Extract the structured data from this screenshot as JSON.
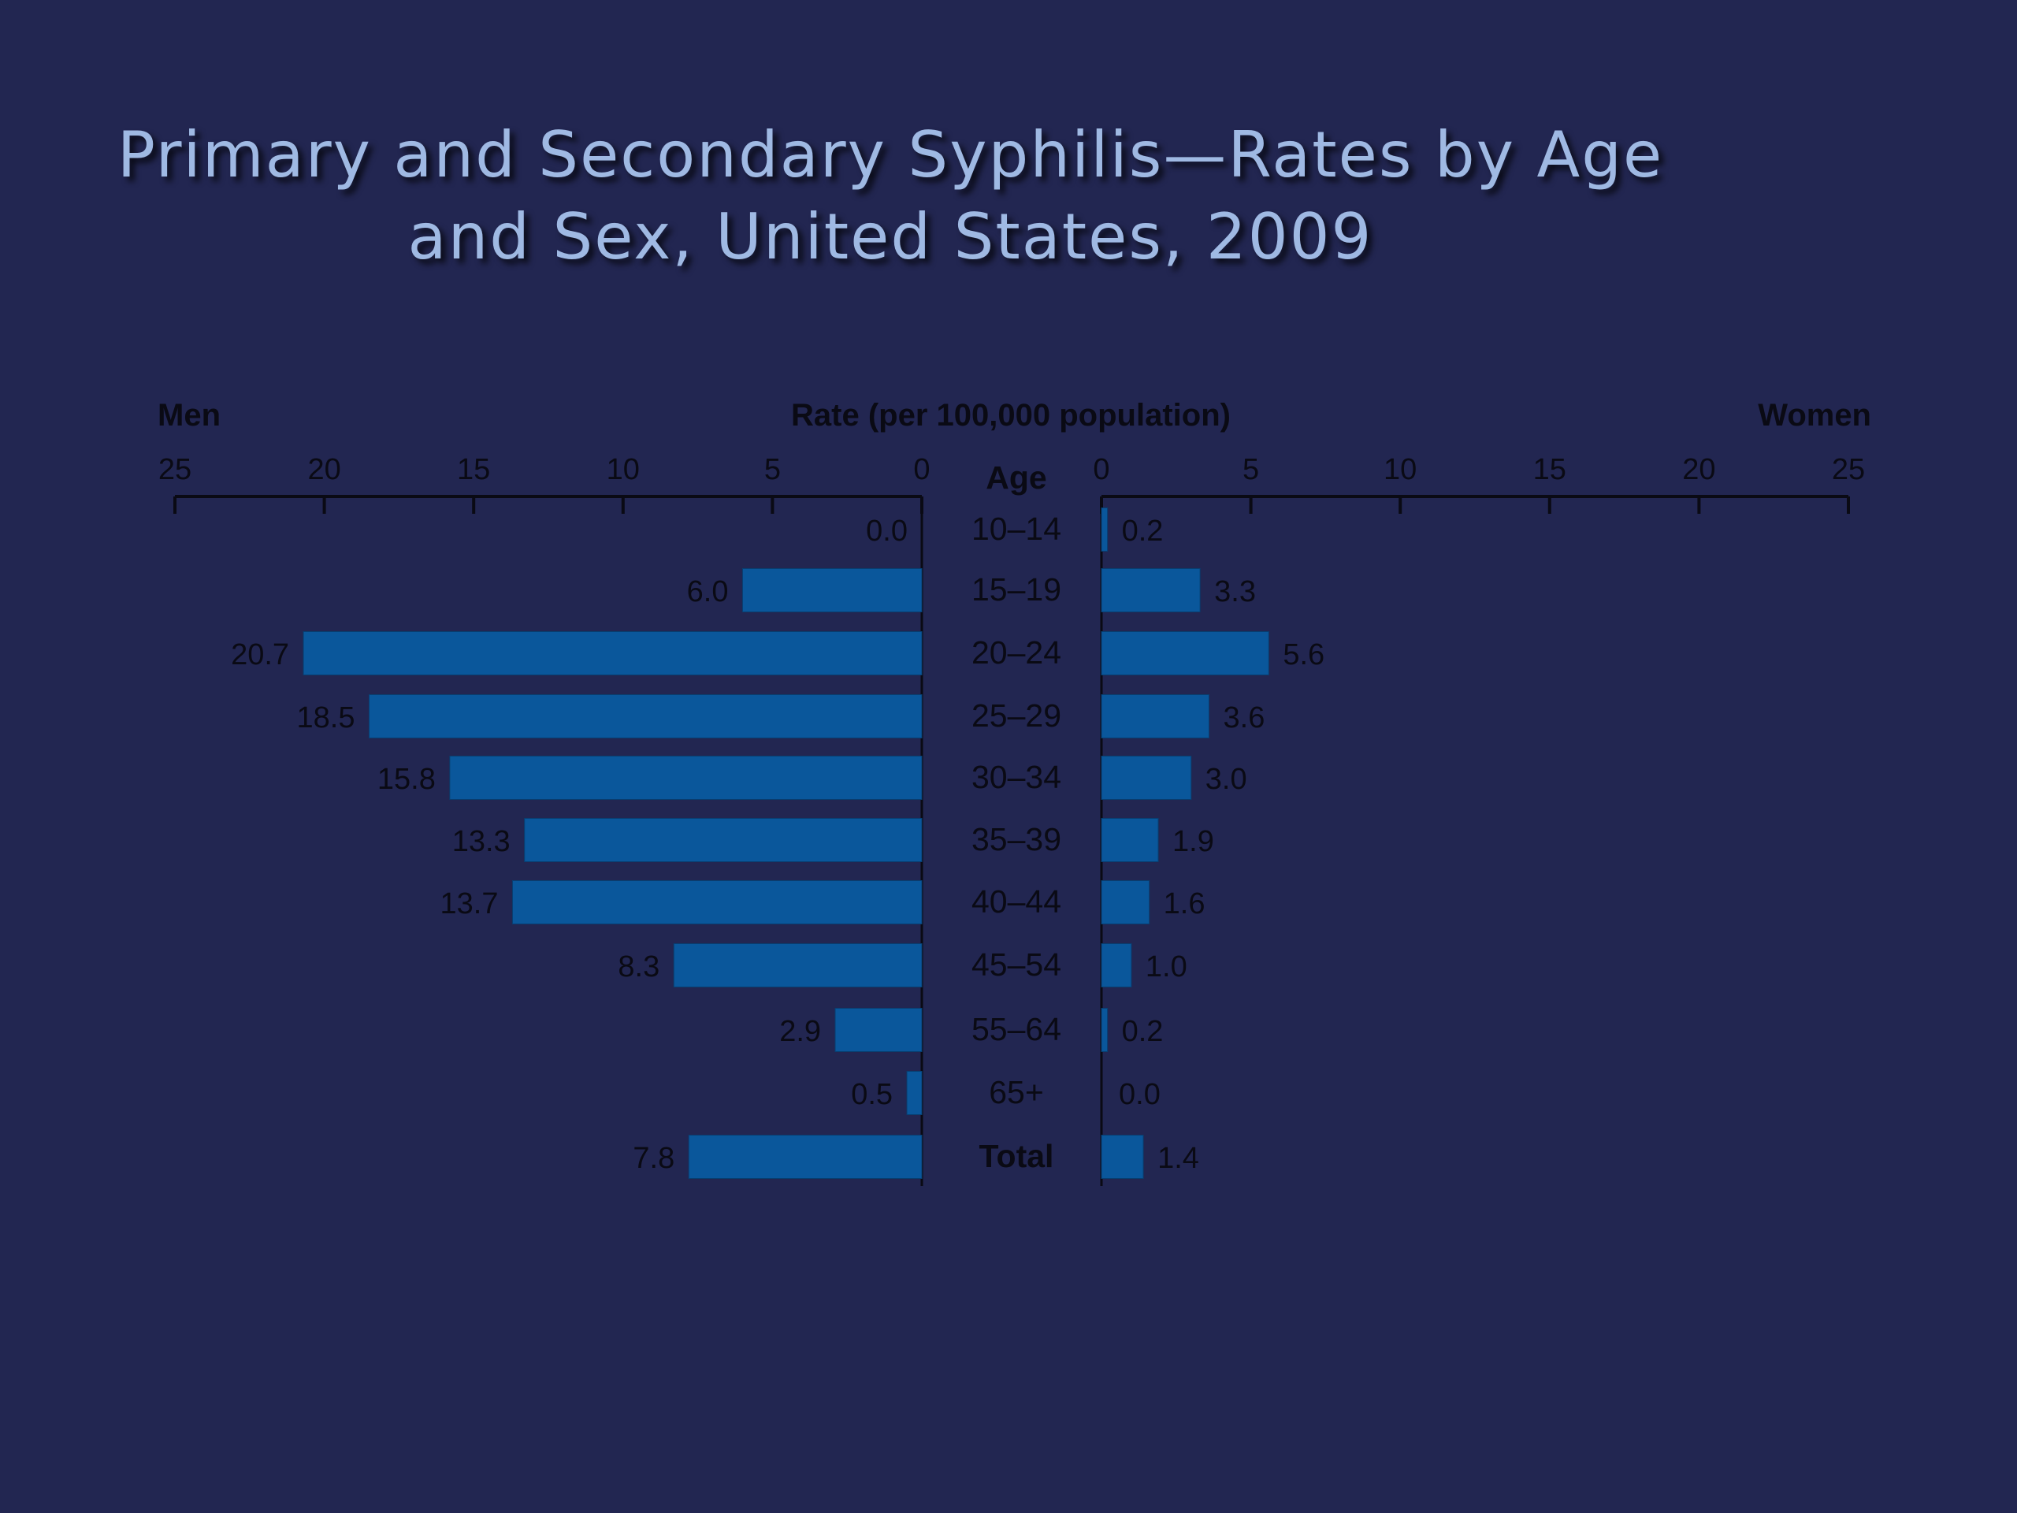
{
  "slide": {
    "title_line1": "Primary and Secondary Syphilis—Rates by Age",
    "title_line2": "and Sex, United States, 2009"
  },
  "colors": {
    "background": "#222651",
    "title": "#9fb9e3",
    "bar": "#0a579b",
    "text": "#0a0a14"
  },
  "chart_data": {
    "type": "bar",
    "orientation": "horizontal-butterfly",
    "title": "Rate (per 100,000 population)",
    "left_label": "Men",
    "right_label": "Women",
    "center_label": "Age",
    "xlim": [
      0,
      25
    ],
    "ticks": [
      "0",
      "5",
      "10",
      "15",
      "20",
      "25"
    ],
    "categories": [
      "10–14",
      "15–19",
      "20–24",
      "25–29",
      "30–34",
      "35–39",
      "40–44",
      "45–54",
      "55–64",
      "65+",
      "Total"
    ],
    "series": [
      {
        "name": "Men",
        "values": [
          0.0,
          6.0,
          20.7,
          18.5,
          15.8,
          13.3,
          13.7,
          8.3,
          2.9,
          0.5,
          7.8
        ],
        "labels": [
          "0.0",
          "6.0",
          "20.7",
          "18.5",
          "15.8",
          "13.3",
          "13.7",
          "8.3",
          "2.9",
          "0.5",
          "7.8"
        ]
      },
      {
        "name": "Women",
        "values": [
          0.2,
          3.3,
          5.6,
          3.6,
          3.0,
          1.9,
          1.6,
          1.0,
          0.2,
          0.0,
          1.4
        ],
        "labels": [
          "0.2",
          "3.3",
          "5.6",
          "3.6",
          "3.0",
          "1.9",
          "1.6",
          "1.0",
          "0.2",
          "0.0",
          "1.4"
        ]
      }
    ]
  }
}
